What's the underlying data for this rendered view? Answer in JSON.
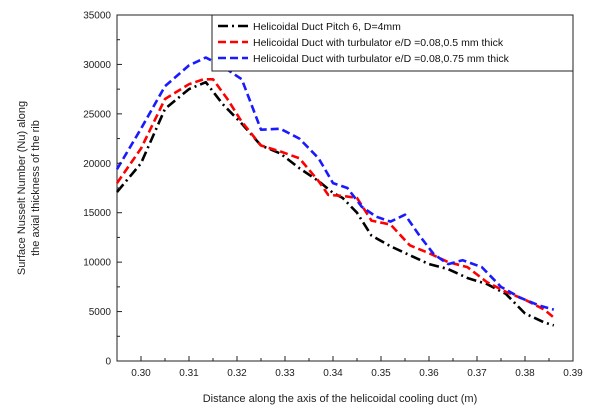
{
  "chart_data": {
    "type": "line",
    "title": "",
    "xlabel": "Distance along the axis of the helicoidal cooling duct (m)",
    "ylabel": [
      "Surface Nusselt Number (Nu) along",
      "the axial thickness of the rib"
    ],
    "xlim": [
      0.295,
      0.39
    ],
    "ylim": [
      0,
      35000
    ],
    "x_ticks": [
      0.3,
      0.31,
      0.32,
      0.33,
      0.34,
      0.35,
      0.36,
      0.37,
      0.38,
      0.39
    ],
    "x_tick_labels": [
      "0.30",
      "0.31",
      "0.32",
      "0.33",
      "0.34",
      "0.35",
      "0.36",
      "0.37",
      "0.38",
      "0.39"
    ],
    "y_ticks": [
      0,
      5000,
      10000,
      15000,
      20000,
      25000,
      30000,
      35000
    ],
    "y_tick_labels": [
      "0",
      "5000",
      "10000",
      "15000",
      "20000",
      "25000",
      "30000",
      "35000"
    ],
    "grid": false,
    "legend_position": "top-right",
    "series": [
      {
        "name": "Helicoidal Duct Pitch 6, D=4mm",
        "color": "#000000",
        "style": "dashdot",
        "x": [
          0.295,
          0.3,
          0.305,
          0.31,
          0.3135,
          0.317,
          0.321,
          0.325,
          0.329,
          0.333,
          0.337,
          0.34,
          0.342,
          0.345,
          0.348,
          0.352,
          0.356,
          0.36,
          0.364,
          0.368,
          0.372,
          0.376,
          0.38,
          0.384,
          0.386
        ],
        "y": [
          17100,
          20000,
          25500,
          27500,
          28200,
          26000,
          24000,
          21800,
          21000,
          19500,
          18200,
          17000,
          16500,
          15000,
          12700,
          11600,
          10700,
          9800,
          9300,
          8400,
          7800,
          6800,
          4800,
          3900,
          3600
        ]
      },
      {
        "name": "Helicoidal Duct with turbulator e/D =0.08,0.5 mm thick",
        "color": "#ff0000",
        "style": "dashed",
        "x": [
          0.295,
          0.3,
          0.305,
          0.31,
          0.313,
          0.315,
          0.318,
          0.321,
          0.325,
          0.329,
          0.333,
          0.337,
          0.339,
          0.342,
          0.345,
          0.348,
          0.352,
          0.356,
          0.36,
          0.364,
          0.368,
          0.372,
          0.376,
          0.38,
          0.384,
          0.386
        ],
        "y": [
          18000,
          21500,
          26500,
          28000,
          28500,
          28500,
          26500,
          24200,
          21800,
          21200,
          20500,
          18200,
          16800,
          16700,
          16500,
          14200,
          13800,
          11700,
          10900,
          10000,
          9500,
          8000,
          7000,
          6200,
          5200,
          4400
        ]
      },
      {
        "name": "Helicoidal Duct with turbulator e/D =0.08,0.75 mm thick",
        "color": "#1a1aff",
        "style": "dashed",
        "x": [
          0.295,
          0.3,
          0.305,
          0.31,
          0.3135,
          0.317,
          0.321,
          0.325,
          0.329,
          0.333,
          0.337,
          0.34,
          0.343,
          0.346,
          0.349,
          0.352,
          0.355,
          0.358,
          0.361,
          0.364,
          0.367,
          0.371,
          0.375,
          0.379,
          0.383,
          0.386
        ],
        "y": [
          19400,
          23500,
          27800,
          29900,
          30700,
          29800,
          28500,
          23400,
          23500,
          22500,
          20500,
          18000,
          17500,
          15600,
          14600,
          14100,
          14800,
          12700,
          10800,
          9800,
          10200,
          9500,
          7500,
          6400,
          5600,
          5200
        ]
      }
    ]
  }
}
